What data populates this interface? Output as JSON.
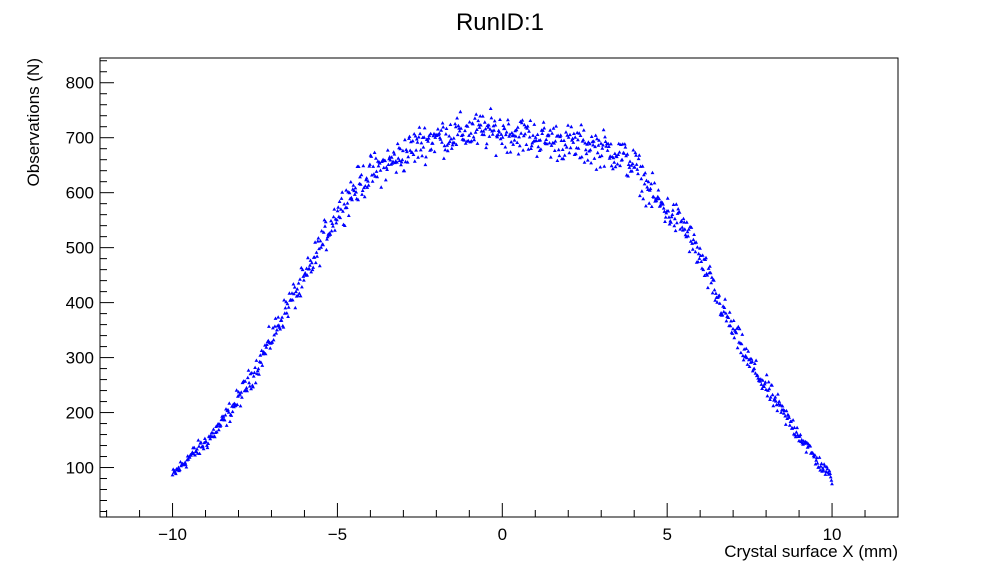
{
  "chart_data": {
    "type": "scatter",
    "title": "RunID:1",
    "xlabel": "Crystal surface X (mm)",
    "ylabel": "Observations (N)",
    "xlim": [
      -12.2,
      12
    ],
    "ylim": [
      10,
      845
    ],
    "x_ticks": [
      -10,
      -5,
      0,
      5,
      10
    ],
    "x_tick_labels": [
      "−10",
      "−5",
      "0",
      "5",
      "10"
    ],
    "y_ticks": [
      100,
      200,
      300,
      400,
      500,
      600,
      700,
      800
    ],
    "y_tick_labels": [
      "100",
      "200",
      "300",
      "400",
      "500",
      "600",
      "700",
      "800"
    ],
    "grid": false,
    "marker_color": "#0000ff",
    "x_range": [
      -10,
      10
    ],
    "n_points": 1000,
    "profile": {
      "x": [
        -10,
        -9.5,
        -9,
        -8.5,
        -8,
        -7.5,
        -7,
        -6.5,
        -6,
        -5.5,
        -5,
        -4.5,
        -4,
        -3.5,
        -3,
        -2.5,
        -2,
        -1.5,
        -1,
        -0.5,
        0,
        0.5,
        1,
        1.5,
        2,
        2.5,
        3,
        3.5,
        4,
        4.5,
        5,
        5.5,
        6,
        6.5,
        7,
        7.5,
        8,
        8.5,
        9,
        9.5,
        10
      ],
      "y": [
        85,
        118,
        145,
        180,
        225,
        275,
        335,
        395,
        440,
        505,
        565,
        605,
        635,
        652,
        668,
        690,
        700,
        705,
        710,
        712,
        710,
        705,
        700,
        695,
        690,
        685,
        680,
        670,
        650,
        600,
        565,
        540,
        480,
        410,
        350,
        290,
        245,
        200,
        160,
        115,
        80
      ]
    }
  }
}
